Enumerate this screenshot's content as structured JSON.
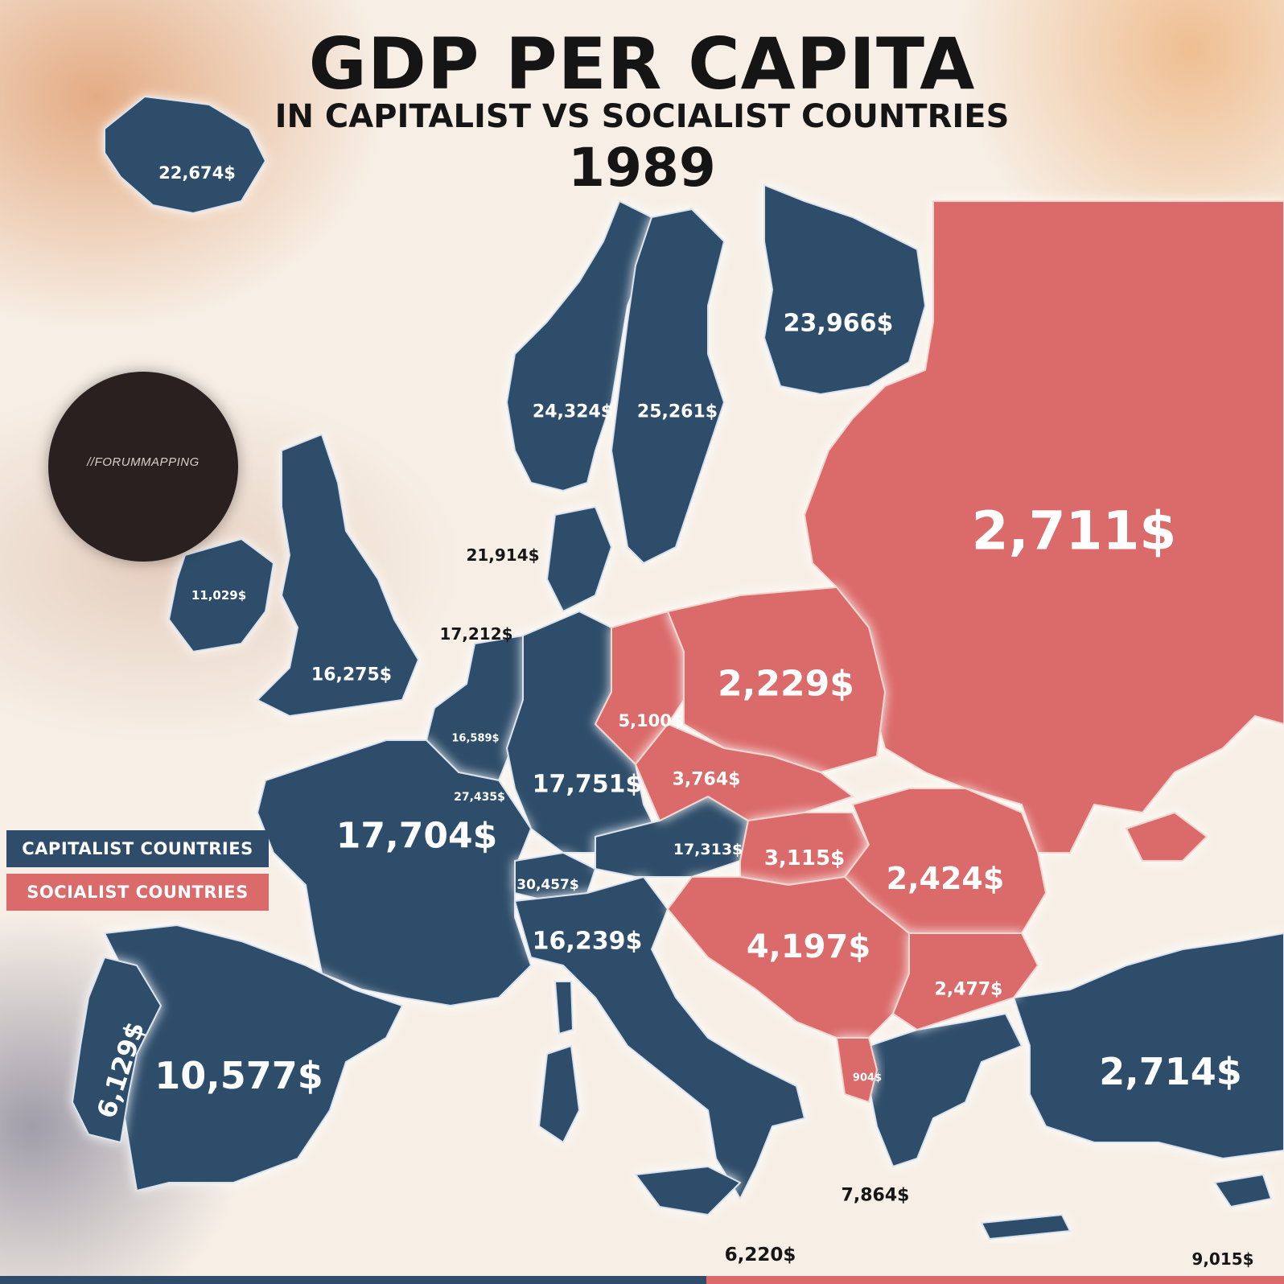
{
  "header": {
    "title": "GDP PER CAPITA",
    "subtitle": "IN CAPITALIST VS SOCIALIST COUNTRIES",
    "year": "1989"
  },
  "legend": {
    "capitalist": "CAPITALIST COUNTRIES",
    "socialist": "SOCIALIST COUNTRIES"
  },
  "watermark": "//FORUMMAPPING",
  "colors": {
    "capitalist": "#2f4d6b",
    "socialist": "#db6b6b"
  },
  "labels": {
    "iceland": "22,674$",
    "norway": "24,324$",
    "sweden": "25,261$",
    "finland": "23,966$",
    "ussr": "2,711$",
    "denmark": "21,914$",
    "ireland": "11,029$",
    "uk": "16,275$",
    "netherlands": "17,212$",
    "belgium": "16,589$",
    "luxembourg": "27,435$",
    "france": "17,704$",
    "west_germany": "17,751$",
    "east_germany": "5,100$",
    "poland": "2,229$",
    "czechoslovakia": "3,764$",
    "austria": "17,313$",
    "hungary": "3,115$",
    "romania": "2,424$",
    "switzerland": "30,457$",
    "italy": "16,239$",
    "yugoslavia": "4,197$",
    "bulgaria": "2,477$",
    "albania": "904$",
    "greece": "7,864$",
    "turkey": "2,714$",
    "portugal": "6,129$",
    "spain": "10,577$",
    "malta": "6,220$",
    "cyprus": "9,015$"
  }
}
